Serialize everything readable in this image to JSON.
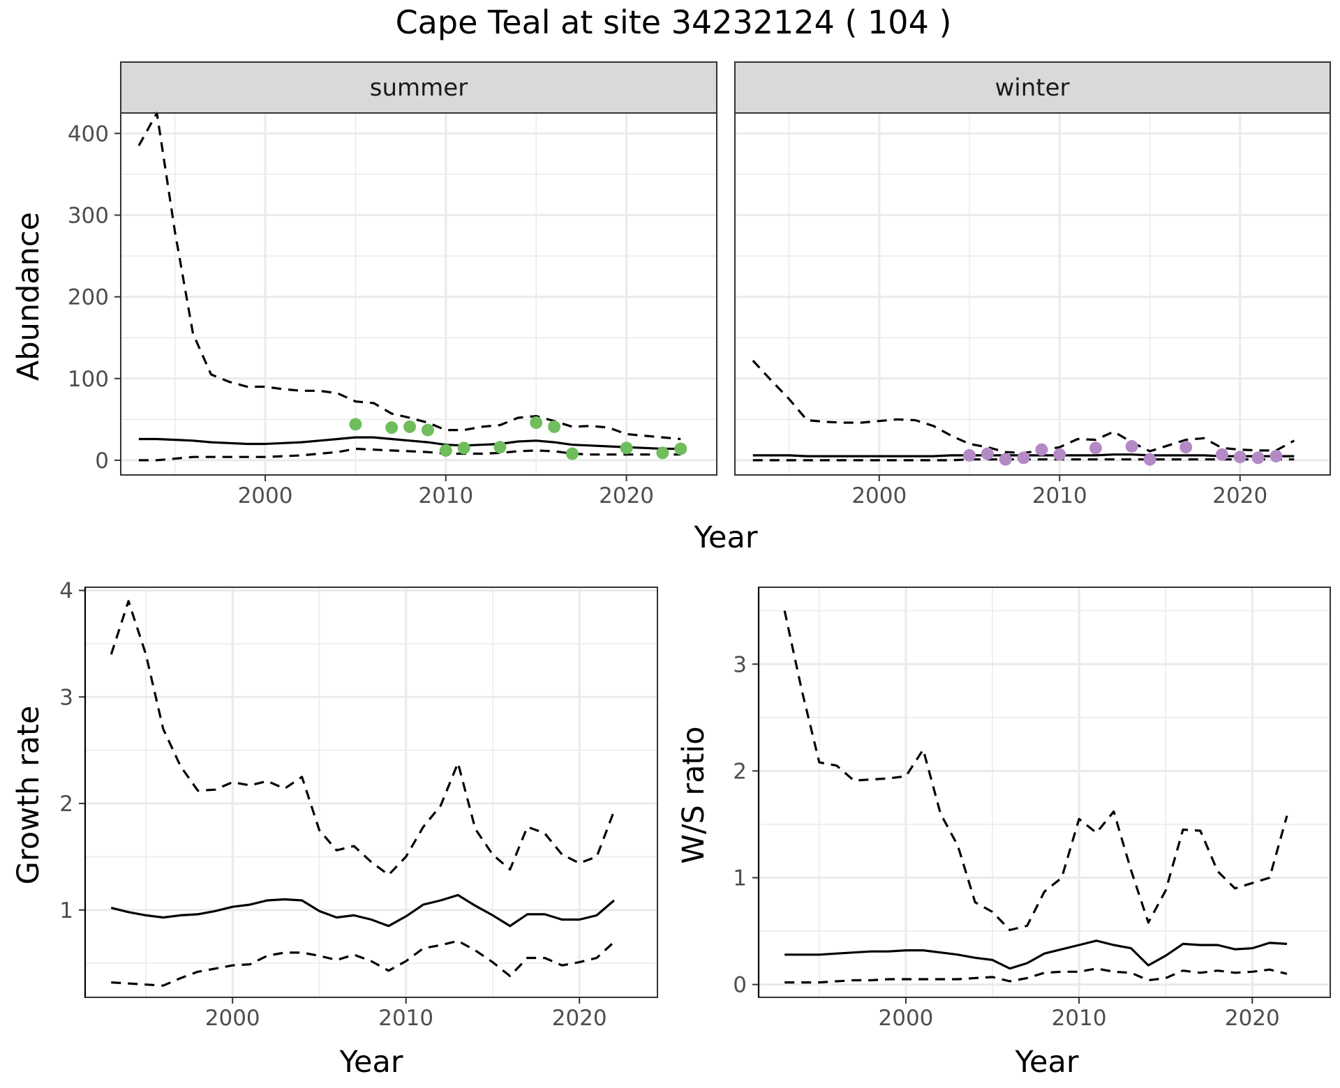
{
  "title": "Cape Teal at site 34232124 ( 104 )",
  "colors": {
    "summer_points": "#70bd5d",
    "winter_points": "#b48ac6",
    "strip_fill": "#d9d9d9",
    "grid": "#ebebeb",
    "line": "#000000"
  },
  "chart_data": [
    {
      "type": "line",
      "id": "abundance",
      "ylabel": "Abundance",
      "xlabel": "Year",
      "xlim": [
        1992,
        2025
      ],
      "ylim": [
        -18,
        425
      ],
      "x_ticks": [
        2000,
        2010,
        2020
      ],
      "y_ticks": [
        0,
        100,
        200,
        300,
        400
      ],
      "facets": [
        {
          "label": "summer",
          "x": [
            1993,
            1994,
            1995,
            1996,
            1997,
            1998,
            1999,
            2000,
            2001,
            2002,
            2003,
            2004,
            2005,
            2006,
            2007,
            2008,
            2009,
            2010,
            2011,
            2012,
            2013,
            2014,
            2015,
            2016,
            2017,
            2018,
            2019,
            2020,
            2021,
            2022,
            2023
          ],
          "estimate": [
            26,
            26,
            25,
            24,
            22,
            21,
            20,
            20,
            21,
            22,
            24,
            26,
            28,
            28,
            26,
            24,
            22,
            19,
            18,
            19,
            20,
            23,
            24,
            22,
            19,
            18,
            17,
            16,
            15,
            14,
            14
          ],
          "upper": [
            385,
            425,
            280,
            155,
            105,
            96,
            90,
            90,
            87,
            85,
            85,
            82,
            72,
            70,
            57,
            52,
            46,
            37,
            37,
            41,
            43,
            52,
            54,
            48,
            41,
            42,
            40,
            32,
            30,
            28,
            26
          ],
          "lower": [
            0,
            0,
            2,
            4,
            4,
            4,
            4,
            4,
            5,
            6,
            8,
            10,
            14,
            13,
            12,
            11,
            10,
            8,
            8,
            8,
            9,
            11,
            12,
            11,
            8,
            7,
            7,
            7,
            7,
            7,
            7
          ],
          "points": {
            "x": [
              2005,
              2007,
              2008,
              2009,
              2010,
              2011,
              2013,
              2015,
              2016,
              2017,
              2020,
              2022,
              2023
            ],
            "y": [
              44,
              40,
              41,
              37,
              12,
              15,
              16,
              46,
              41,
              8,
              15,
              9,
              14
            ]
          }
        },
        {
          "label": "winter",
          "x": [
            1993,
            1994,
            1995,
            1996,
            1997,
            1998,
            1999,
            2000,
            2001,
            2002,
            2003,
            2004,
            2005,
            2006,
            2007,
            2008,
            2009,
            2010,
            2011,
            2012,
            2013,
            2014,
            2015,
            2016,
            2017,
            2018,
            2019,
            2020,
            2021,
            2022,
            2023
          ],
          "estimate": [
            6,
            6,
            6,
            5,
            5,
            5,
            5,
            5,
            5,
            5,
            5,
            6,
            6,
            6,
            6,
            6,
            6,
            6,
            6,
            6,
            7,
            7,
            6,
            6,
            6,
            6,
            5,
            5,
            5,
            5,
            5
          ],
          "upper": [
            122,
            98,
            75,
            49,
            47,
            46,
            46,
            48,
            50,
            49,
            42,
            30,
            20,
            16,
            10,
            9,
            12,
            16,
            26,
            25,
            35,
            22,
            11,
            18,
            25,
            27,
            15,
            13,
            12,
            12,
            24
          ],
          "lower": [
            0,
            0,
            0,
            0,
            0,
            0,
            0,
            0,
            0,
            0,
            0,
            0,
            1,
            1,
            1,
            1,
            1,
            1,
            1,
            1,
            1,
            1,
            1,
            1,
            1,
            1,
            1,
            1,
            1,
            1,
            1
          ],
          "points": {
            "x": [
              2005,
              2006,
              2007,
              2008,
              2009,
              2010,
              2012,
              2014,
              2015,
              2017,
              2019,
              2020,
              2021,
              2022
            ],
            "y": [
              6,
              8,
              1,
              3,
              13,
              7,
              15,
              17,
              1,
              16,
              7,
              4,
              3,
              5
            ]
          }
        }
      ]
    },
    {
      "type": "line",
      "id": "growth_rate",
      "ylabel": "Growth rate",
      "xlabel": "Year",
      "xlim": [
        1991.5,
        2024.5
      ],
      "ylim": [
        0.18,
        4.03
      ],
      "x_ticks": [
        2000,
        2010,
        2020
      ],
      "y_ticks": [
        1,
        2,
        3,
        4
      ],
      "x": [
        1993,
        1994,
        1995,
        1996,
        1997,
        1998,
        1999,
        2000,
        2001,
        2002,
        2003,
        2004,
        2005,
        2006,
        2007,
        2008,
        2009,
        2010,
        2011,
        2012,
        2013,
        2014,
        2015,
        2016,
        2017,
        2018,
        2019,
        2020,
        2021,
        2022
      ],
      "estimate": [
        1.02,
        0.98,
        0.95,
        0.93,
        0.95,
        0.96,
        0.99,
        1.03,
        1.05,
        1.09,
        1.1,
        1.09,
        0.99,
        0.93,
        0.95,
        0.91,
        0.85,
        0.94,
        1.05,
        1.09,
        1.14,
        1.04,
        0.95,
        0.85,
        0.96,
        0.96,
        0.91,
        0.91,
        0.95,
        1.09
      ],
      "upper": [
        3.4,
        3.9,
        3.4,
        2.7,
        2.35,
        2.12,
        2.13,
        2.2,
        2.17,
        2.21,
        2.14,
        2.25,
        1.75,
        1.56,
        1.6,
        1.45,
        1.33,
        1.5,
        1.78,
        1.98,
        2.38,
        1.76,
        1.52,
        1.38,
        1.78,
        1.72,
        1.52,
        1.44,
        1.5,
        1.93
      ],
      "lower": [
        0.32,
        0.31,
        0.3,
        0.29,
        0.36,
        0.42,
        0.45,
        0.48,
        0.49,
        0.57,
        0.6,
        0.6,
        0.57,
        0.53,
        0.58,
        0.52,
        0.43,
        0.52,
        0.64,
        0.67,
        0.71,
        0.62,
        0.51,
        0.38,
        0.55,
        0.55,
        0.48,
        0.51,
        0.55,
        0.7
      ]
    },
    {
      "type": "line",
      "id": "ws_ratio",
      "ylabel": "W/S ratio",
      "xlabel": "Year",
      "xlim": [
        1991.5,
        2024.5
      ],
      "ylim": [
        -0.12,
        3.72
      ],
      "x_ticks": [
        2000,
        2010,
        2020
      ],
      "y_ticks": [
        0,
        1,
        2,
        3
      ],
      "x": [
        1993,
        1994,
        1995,
        1996,
        1997,
        1998,
        1999,
        2000,
        2001,
        2002,
        2003,
        2004,
        2005,
        2006,
        2007,
        2008,
        2009,
        2010,
        2011,
        2012,
        2013,
        2014,
        2015,
        2016,
        2017,
        2018,
        2019,
        2020,
        2021,
        2022
      ],
      "estimate": [
        0.28,
        0.28,
        0.28,
        0.29,
        0.3,
        0.31,
        0.31,
        0.32,
        0.32,
        0.3,
        0.28,
        0.25,
        0.23,
        0.15,
        0.2,
        0.29,
        0.33,
        0.37,
        0.41,
        0.37,
        0.34,
        0.18,
        0.27,
        0.38,
        0.37,
        0.37,
        0.33,
        0.34,
        0.39,
        0.38
      ],
      "upper": [
        3.5,
        2.75,
        2.08,
        2.05,
        1.91,
        1.92,
        1.93,
        1.95,
        2.2,
        1.6,
        1.3,
        0.77,
        0.68,
        0.51,
        0.55,
        0.87,
        1.0,
        1.55,
        1.42,
        1.62,
        1.07,
        0.58,
        0.88,
        1.45,
        1.44,
        1.06,
        0.9,
        0.95,
        1.0,
        1.58
      ],
      "lower": [
        0.02,
        0.02,
        0.02,
        0.03,
        0.04,
        0.04,
        0.05,
        0.05,
        0.05,
        0.05,
        0.05,
        0.06,
        0.07,
        0.03,
        0.06,
        0.11,
        0.12,
        0.12,
        0.15,
        0.12,
        0.11,
        0.04,
        0.06,
        0.13,
        0.11,
        0.13,
        0.11,
        0.12,
        0.14,
        0.1
      ]
    }
  ]
}
